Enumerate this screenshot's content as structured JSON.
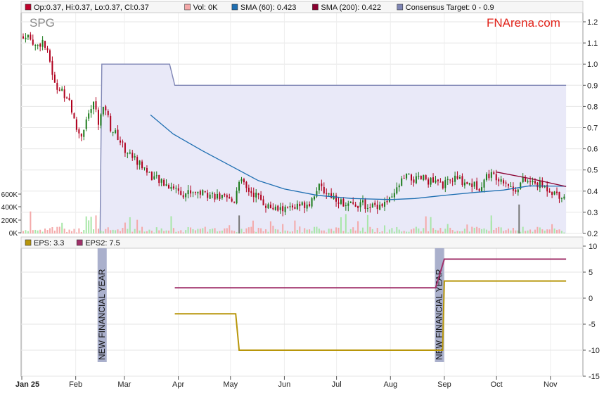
{
  "legend_top": [
    {
      "label": "Op:0.37, Hi:0.37, Lo:0.37, Cl:0.37",
      "color": "#c0002a"
    },
    {
      "label": "Vol: 0K",
      "color": "#f4a9a9"
    },
    {
      "label": "SMA (60): 0.423",
      "color": "#1f6fb2"
    },
    {
      "label": "SMA (200): 0.422",
      "color": "#8a0030"
    },
    {
      "label": "Consensus Target: 0 - 0.9",
      "color": "#7f86b5"
    }
  ],
  "legend_bottom": [
    {
      "label": "EPS: 3.3",
      "color": "#b8960a"
    },
    {
      "label": "EPS2: 7.5",
      "color": "#a0306a"
    }
  ],
  "ticker": "SPG",
  "brand": "FNArena.com",
  "annotation": "NEW FINANCIAL YEAR",
  "chart_data": [
    {
      "type": "candlestick",
      "x_ticks": [
        "Jan 25",
        "Feb",
        "Mar",
        "Apr",
        "May",
        "Jun",
        "Jul",
        "Aug",
        "Sep",
        "Oct",
        "Nov"
      ],
      "y_ticks": [
        "1.2",
        "1.1",
        "1.0",
        "0.9",
        "0.8",
        "0.7",
        "0.6",
        "0.5",
        "0.4",
        "0.3",
        "0.2"
      ],
      "volume_ticks": [
        "600K",
        "400K",
        "200K",
        "0K"
      ],
      "ylim": [
        0.2,
        1.2
      ],
      "close_path": [
        {
          "x": "2025-01-01",
          "y": 1.12
        },
        {
          "x": "2025-01-06",
          "y": 1.13
        },
        {
          "x": "2025-01-09",
          "y": 1.08
        },
        {
          "x": "2025-01-13",
          "y": 1.11
        },
        {
          "x": "2025-01-17",
          "y": 1.02
        },
        {
          "x": "2025-01-20",
          "y": 0.9
        },
        {
          "x": "2025-01-24",
          "y": 0.87
        },
        {
          "x": "2025-01-28",
          "y": 0.84
        },
        {
          "x": "2025-02-01",
          "y": 0.7
        },
        {
          "x": "2025-02-04",
          "y": 0.66
        },
        {
          "x": "2025-02-08",
          "y": 0.76
        },
        {
          "x": "2025-02-12",
          "y": 0.82
        },
        {
          "x": "2025-02-14",
          "y": 0.73
        },
        {
          "x": "2025-02-18",
          "y": 0.8
        },
        {
          "x": "2025-02-21",
          "y": 0.7
        },
        {
          "x": "2025-02-25",
          "y": 0.66
        },
        {
          "x": "2025-03-01",
          "y": 0.6
        },
        {
          "x": "2025-03-06",
          "y": 0.56
        },
        {
          "x": "2025-03-11",
          "y": 0.52
        },
        {
          "x": "2025-03-17",
          "y": 0.47
        },
        {
          "x": "2025-03-22",
          "y": 0.44
        },
        {
          "x": "2025-03-29",
          "y": 0.42
        },
        {
          "x": "2025-04-04",
          "y": 0.39
        },
        {
          "x": "2025-04-10",
          "y": 0.4
        },
        {
          "x": "2025-04-16",
          "y": 0.39
        },
        {
          "x": "2025-04-22",
          "y": 0.38
        },
        {
          "x": "2025-04-28",
          "y": 0.36
        },
        {
          "x": "2025-05-03",
          "y": 0.35
        },
        {
          "x": "2025-05-06",
          "y": 0.46
        },
        {
          "x": "2025-05-10",
          "y": 0.41
        },
        {
          "x": "2025-05-16",
          "y": 0.38
        },
        {
          "x": "2025-05-22",
          "y": 0.33
        },
        {
          "x": "2025-05-28",
          "y": 0.31
        },
        {
          "x": "2025-06-04",
          "y": 0.32
        },
        {
          "x": "2025-06-10",
          "y": 0.33
        },
        {
          "x": "2025-06-16",
          "y": 0.35
        },
        {
          "x": "2025-06-20",
          "y": 0.42
        },
        {
          "x": "2025-06-24",
          "y": 0.4
        },
        {
          "x": "2025-06-30",
          "y": 0.37
        },
        {
          "x": "2025-07-07",
          "y": 0.33
        },
        {
          "x": "2025-07-14",
          "y": 0.34
        },
        {
          "x": "2025-07-21",
          "y": 0.33
        },
        {
          "x": "2025-07-28",
          "y": 0.34
        },
        {
          "x": "2025-08-02",
          "y": 0.36
        },
        {
          "x": "2025-08-06",
          "y": 0.43
        },
        {
          "x": "2025-08-10",
          "y": 0.47
        },
        {
          "x": "2025-08-15",
          "y": 0.45
        },
        {
          "x": "2025-08-20",
          "y": 0.46
        },
        {
          "x": "2025-08-26",
          "y": 0.44
        },
        {
          "x": "2025-09-01",
          "y": 0.43
        },
        {
          "x": "2025-09-07",
          "y": 0.46
        },
        {
          "x": "2025-09-14",
          "y": 0.44
        },
        {
          "x": "2025-09-21",
          "y": 0.42
        },
        {
          "x": "2025-09-26",
          "y": 0.48
        },
        {
          "x": "2025-10-01",
          "y": 0.47
        },
        {
          "x": "2025-10-06",
          "y": 0.45
        },
        {
          "x": "2025-10-11",
          "y": 0.4
        },
        {
          "x": "2025-10-16",
          "y": 0.45
        },
        {
          "x": "2025-10-21",
          "y": 0.44
        },
        {
          "x": "2025-10-26",
          "y": 0.43
        },
        {
          "x": "2025-10-31",
          "y": 0.41
        },
        {
          "x": "2025-11-04",
          "y": 0.39
        },
        {
          "x": "2025-11-10",
          "y": 0.37
        }
      ],
      "sma60": [
        {
          "x": "2025-03-16",
          "y": 0.76
        },
        {
          "x": "2025-03-29",
          "y": 0.67
        },
        {
          "x": "2025-04-15",
          "y": 0.59
        },
        {
          "x": "2025-05-01",
          "y": 0.52
        },
        {
          "x": "2025-05-17",
          "y": 0.45
        },
        {
          "x": "2025-06-01",
          "y": 0.41
        },
        {
          "x": "2025-06-20",
          "y": 0.38
        },
        {
          "x": "2025-07-10",
          "y": 0.365
        },
        {
          "x": "2025-08-01",
          "y": 0.36
        },
        {
          "x": "2025-08-15",
          "y": 0.365
        },
        {
          "x": "2025-09-01",
          "y": 0.38
        },
        {
          "x": "2025-09-20",
          "y": 0.395
        },
        {
          "x": "2025-10-05",
          "y": 0.405
        },
        {
          "x": "2025-10-20",
          "y": 0.425
        },
        {
          "x": "2025-11-10",
          "y": 0.423
        }
      ],
      "sma200": [
        {
          "x": "2025-10-01",
          "y": 0.49
        },
        {
          "x": "2025-10-20",
          "y": 0.46
        },
        {
          "x": "2025-11-10",
          "y": 0.422
        }
      ],
      "consensus_target": [
        {
          "x": "2025-02-15",
          "y": 0.2
        },
        {
          "x": "2025-02-16",
          "y": 1.0
        },
        {
          "x": "2025-03-27",
          "y": 1.0
        },
        {
          "x": "2025-03-30",
          "y": 0.9
        },
        {
          "x": "2025-11-10",
          "y": 0.9
        }
      ],
      "volume_max": 700000
    },
    {
      "type": "line",
      "y_ticks": [
        "10",
        "5",
        "0",
        "-5",
        "-10",
        "-15"
      ],
      "ylim": [
        -15,
        10
      ],
      "series": [
        {
          "name": "EPS",
          "points": [
            {
              "x": "2025-03-30",
              "y": -3
            },
            {
              "x": "2025-05-04",
              "y": -3
            },
            {
              "x": "2025-05-06",
              "y": -10
            },
            {
              "x": "2025-08-27",
              "y": -10
            },
            {
              "x": "2025-08-31",
              "y": -10
            },
            {
              "x": "2025-09-01",
              "y": 3.3
            },
            {
              "x": "2025-11-10",
              "y": 3.3
            }
          ]
        },
        {
          "name": "EPS2",
          "points": [
            {
              "x": "2025-03-30",
              "y": 2
            },
            {
              "x": "2025-08-27",
              "y": 2
            },
            {
              "x": "2025-09-01",
              "y": 7.5
            },
            {
              "x": "2025-11-10",
              "y": 7.5
            }
          ]
        }
      ],
      "markers": [
        "2025-02-16",
        "2025-08-29"
      ]
    }
  ]
}
